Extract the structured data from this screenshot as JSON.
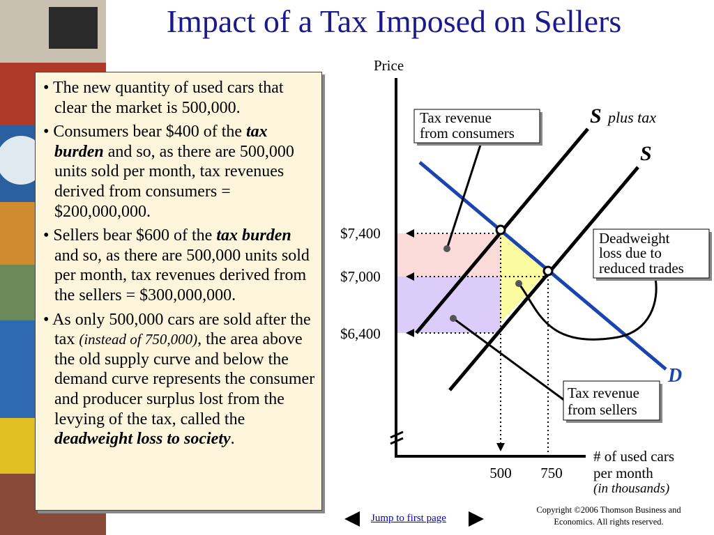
{
  "title": "Impact of a Tax Imposed on Sellers",
  "bullets": [
    {
      "runs": [
        {
          "text": "• The new quantity of used cars that clear the market is 500,000.",
          "style": "normal"
        }
      ]
    },
    {
      "runs": [
        {
          "text": "• Consumers bear $400 of the ",
          "style": "normal"
        },
        {
          "text": "tax burden",
          "style": "bold-italic"
        },
        {
          "text": " and so, as there are 500,000 units sold per month, tax revenues derived from consumers = $200,000,000.",
          "style": "normal"
        }
      ]
    },
    {
      "runs": [
        {
          "text": "• Sellers bear $600 of the ",
          "style": "normal"
        },
        {
          "text": "tax burden",
          "style": "bold-italic"
        },
        {
          "text": " and so, as there are 500,000 units sold per month, tax revenues derived from the sellers = $300,000,000.",
          "style": "normal"
        }
      ]
    },
    {
      "runs": [
        {
          "text": "• As only 500,000 cars are sold after the tax ",
          "style": "normal"
        },
        {
          "text": "(instead of 750,000)",
          "style": "italic"
        },
        {
          "text": ", the area above the old supply curve and below the demand curve represents the consumer and producer surplus lost from the levying of the tax, called the ",
          "style": "normal"
        },
        {
          "text": "deadweight loss to society",
          "style": "bold-italic"
        },
        {
          "text": ".",
          "style": "normal"
        }
      ]
    }
  ],
  "diagram": {
    "y_axis_label": "Price",
    "x_axis_label": [
      "# of used cars",
      "per month",
      "(in thousands)"
    ],
    "price_labels": [
      "$7,400",
      "$7,000",
      "$6,400"
    ],
    "quantity_labels": [
      "500",
      "750"
    ],
    "supply_tax_label": [
      "S",
      "plus tax"
    ],
    "supply_label": "S",
    "demand_label": "D",
    "callouts": [
      {
        "lines": [
          "Tax revenue",
          "from consumers"
        ]
      },
      {
        "lines": [
          "Deadweight",
          "loss due to",
          "reduced trades"
        ]
      },
      {
        "lines": [
          "Tax revenue",
          "from sellers"
        ]
      }
    ]
  },
  "footer": {
    "link": "Jump to first page",
    "copyright": [
      "Copyright ©2006  Thomson Business and",
      "Economics. All rights reserved."
    ]
  }
}
